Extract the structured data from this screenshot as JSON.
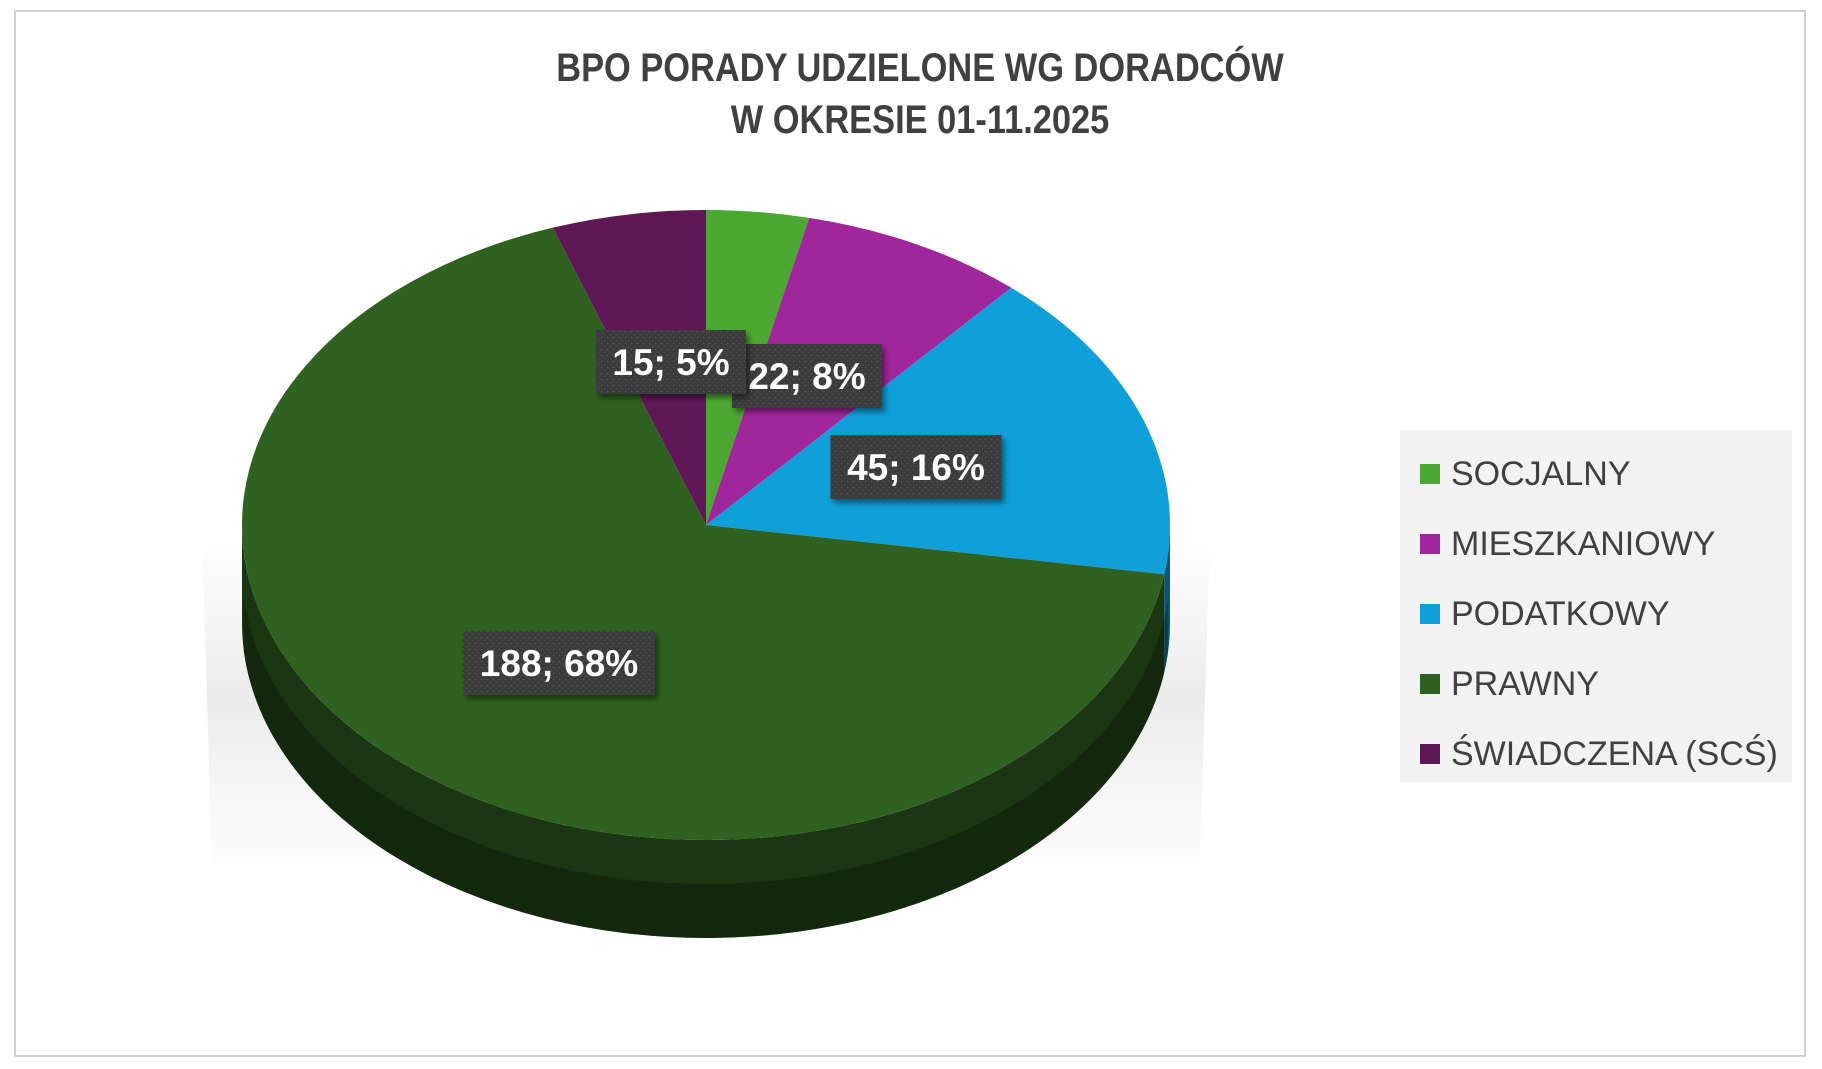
{
  "chart_data": {
    "type": "pie",
    "title": [
      "BPO PORADY UDZIELONE WG DORADCÓW",
      "W OKRESIE 01-11.2025"
    ],
    "slices": [
      {
        "name": "SOCJALNY",
        "value": 10,
        "label": "",
        "color": "#4ca832"
      },
      {
        "name": "MIESZKANIOWY",
        "value": 22,
        "label": "22; 8%",
        "color": "#a0279b"
      },
      {
        "name": "PODATKOWY",
        "value": 45,
        "label": "45; 16%",
        "color": "#0f9fd9"
      },
      {
        "name": "PRAWNY",
        "value": 188,
        "label": "188; 68%",
        "color": "#2f6220"
      },
      {
        "name": "ŚWIADCZENA (SCŚ)",
        "value": 15,
        "label": "15; 5%",
        "color": "#5e1856"
      }
    ],
    "legend_position": "right",
    "style": "3d"
  }
}
